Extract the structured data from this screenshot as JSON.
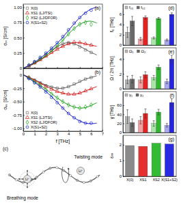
{
  "chart_data": [
    {
      "type": "scatter",
      "title": "(a)",
      "y_label": "σᵣₑ [S/cm]",
      "xlim": [
        0,
        7
      ],
      "ylim": [
        0,
        1.05
      ],
      "xticks": [
        0,
        1,
        2,
        3,
        4,
        5,
        6,
        7
      ],
      "yticks": [
        0,
        0.25,
        {
          "value": 0.5,
          "label": "0.50"
        },
        0.75,
        {
          "value": 1,
          "label": "1.00"
        }
      ],
      "tick_labels": "y",
      "legend": "upper left",
      "series": [
        {
          "name": "X(0)",
          "color": "#7f7f7f",
          "marker": "square",
          "x": [
            0.5,
            1,
            1.5,
            2,
            2.5,
            3,
            3.5,
            4,
            4.5,
            5,
            5.5,
            6
          ],
          "values": [
            0.04,
            0.09,
            0.15,
            0.22,
            0.29,
            0.35,
            0.4,
            0.42,
            0.4,
            0.35,
            0.3,
            0.26
          ]
        },
        {
          "name": "XS1 (LJ/TSI)",
          "color": "#e3342f",
          "marker": "triangle",
          "x": [
            0.5,
            1,
            1.5,
            2,
            2.5,
            3,
            3.5,
            4,
            4.5,
            5,
            5.5,
            6
          ],
          "values": [
            0.04,
            0.09,
            0.14,
            0.2,
            0.26,
            0.31,
            0.36,
            0.4,
            0.43,
            0.42,
            0.4,
            0.38
          ]
        },
        {
          "name": "XS2 (LJ/DFOR)",
          "color": "#33b533",
          "marker": "diamond",
          "x": [
            0.5,
            1,
            1.5,
            2,
            2.5,
            3,
            3.5,
            4,
            4.5,
            5,
            5.5,
            6
          ],
          "values": [
            0.05,
            0.1,
            0.16,
            0.22,
            0.3,
            0.38,
            0.47,
            0.56,
            0.65,
            0.72,
            0.75,
            0.72
          ]
        },
        {
          "name": "X(S1+S2)",
          "color": "#2233dd",
          "marker": "circle",
          "x": [
            0.5,
            1,
            1.5,
            2,
            2.5,
            3,
            3.5,
            4,
            4.5,
            5,
            5.5,
            6
          ],
          "values": [
            0.05,
            0.11,
            0.18,
            0.25,
            0.33,
            0.42,
            0.52,
            0.63,
            0.74,
            0.83,
            0.9,
            0.95
          ]
        },
        {
          "type": "line",
          "color": "#555555",
          "line_style": "solid",
          "x": [
            0,
            1,
            2,
            3,
            3.5,
            4,
            4.5,
            5,
            5.5,
            6,
            6.5
          ],
          "values": [
            0,
            0.08,
            0.21,
            0.35,
            0.4,
            0.42,
            0.4,
            0.36,
            0.31,
            0.26,
            0.22
          ]
        },
        {
          "type": "line",
          "color": "#cc1111",
          "line_style": "solid",
          "x": [
            0,
            1,
            2,
            3,
            3.5,
            4,
            4.5,
            5,
            5.5,
            6,
            6.5
          ],
          "values": [
            0,
            0.08,
            0.19,
            0.31,
            0.36,
            0.4,
            0.42,
            0.42,
            0.4,
            0.38,
            0.36
          ]
        },
        {
          "type": "line",
          "color": "#119911",
          "line_style": "solid",
          "x": [
            0,
            1,
            2,
            3,
            3.5,
            4,
            4.5,
            5,
            5.5,
            6,
            6.5
          ],
          "values": [
            0,
            0.09,
            0.21,
            0.37,
            0.46,
            0.56,
            0.65,
            0.72,
            0.76,
            0.77,
            0.74
          ]
        },
        {
          "type": "line",
          "color": "#1111cc",
          "line_style": "solid",
          "x": [
            0,
            1,
            2,
            3,
            3.5,
            4,
            4.5,
            5,
            5.5,
            6,
            6.5
          ],
          "values": [
            0,
            0.1,
            0.24,
            0.41,
            0.51,
            0.62,
            0.73,
            0.83,
            0.91,
            0.97,
            1.0
          ]
        }
      ]
    },
    {
      "type": "scatter",
      "title": "(b)",
      "x_label": "f [THz]",
      "y_label": "σᵢₘ [S/cm]",
      "xlim": [
        0,
        7
      ],
      "ylim": [
        -1.05,
        0.12
      ],
      "xticks": [
        0,
        1,
        2,
        3,
        4,
        5,
        6,
        7
      ],
      "yticks": [
        0,
        -0.25,
        {
          "value": -0.5,
          "label": "-0.50"
        },
        -0.75,
        {
          "value": -1,
          "label": "-1.00"
        }
      ],
      "legend": "lower left",
      "series": [
        {
          "name": "X(0)",
          "color": "#7f7f7f",
          "marker": "square",
          "x": [
            0.5,
            1,
            1.5,
            2,
            2.5,
            3,
            3.5,
            4,
            4.5,
            5,
            5.5,
            6
          ],
          "values": [
            -0.05,
            -0.1,
            -0.15,
            -0.2,
            -0.23,
            -0.25,
            -0.25,
            -0.22,
            -0.17,
            -0.12,
            -0.08,
            -0.05
          ]
        },
        {
          "name": "XS1 (LJ/TSI)",
          "color": "#e3342f",
          "marker": "triangle",
          "x": [
            0.5,
            1,
            1.5,
            2,
            2.5,
            3,
            3.5,
            4,
            4.5,
            5,
            5.5,
            6
          ],
          "values": [
            -0.05,
            -0.11,
            -0.17,
            -0.22,
            -0.27,
            -0.31,
            -0.34,
            -0.36,
            -0.36,
            -0.34,
            -0.3,
            -0.26
          ]
        },
        {
          "name": "XS2 (LJ/DFOR)",
          "color": "#33b533",
          "marker": "diamond",
          "x": [
            0.5,
            1,
            1.5,
            2,
            2.5,
            3,
            3.5,
            4,
            4.5,
            5,
            5.5,
            6
          ],
          "values": [
            -0.06,
            -0.13,
            -0.2,
            -0.28,
            -0.36,
            -0.43,
            -0.5,
            -0.56,
            -0.6,
            -0.62,
            -0.6,
            -0.56
          ]
        },
        {
          "name": "X(S1+S2)",
          "color": "#2233dd",
          "marker": "circle",
          "x": [
            0.5,
            1,
            1.5,
            2,
            2.5,
            3,
            3.5,
            4,
            4.5,
            5,
            5.5,
            6
          ],
          "values": [
            -0.07,
            -0.15,
            -0.23,
            -0.32,
            -0.42,
            -0.52,
            -0.62,
            -0.72,
            -0.8,
            -0.87,
            -0.9,
            -0.9
          ]
        },
        {
          "type": "line",
          "color": "#555555",
          "line_style": "solid",
          "x": [
            0,
            1,
            2,
            3,
            3.5,
            4,
            4.5,
            5,
            5.5,
            6,
            6.5
          ],
          "values": [
            0,
            -0.09,
            -0.19,
            -0.25,
            -0.25,
            -0.22,
            -0.18,
            -0.13,
            -0.08,
            -0.05,
            -0.02
          ]
        },
        {
          "type": "line",
          "color": "#cc1111",
          "line_style": "solid",
          "x": [
            0,
            1,
            2,
            3,
            3.5,
            4,
            4.5,
            5,
            5.5,
            6,
            6.5
          ],
          "values": [
            0,
            -0.1,
            -0.21,
            -0.31,
            -0.34,
            -0.36,
            -0.36,
            -0.34,
            -0.3,
            -0.26,
            -0.22
          ]
        },
        {
          "type": "line",
          "color": "#119911",
          "line_style": "solid",
          "x": [
            0,
            1,
            2,
            3,
            3.5,
            4,
            4.5,
            5,
            5.5,
            6,
            6.5
          ],
          "values": [
            0,
            -0.12,
            -0.27,
            -0.43,
            -0.5,
            -0.56,
            -0.6,
            -0.62,
            -0.61,
            -0.57,
            -0.52
          ]
        },
        {
          "type": "line",
          "color": "#1111cc",
          "line_style": "solid",
          "x": [
            0,
            1,
            2,
            3,
            3.5,
            4,
            4.5,
            5,
            5.5,
            6,
            6.5
          ],
          "values": [
            0,
            -0.14,
            -0.31,
            -0.51,
            -0.62,
            -0.72,
            -0.8,
            -0.86,
            -0.9,
            -0.91,
            -0.9
          ]
        }
      ]
    },
    {
      "type": "bar",
      "title": "(d)",
      "y_label": "f₀ [THz]",
      "ylim": [
        0,
        8
      ],
      "yticks": [
        0,
        2,
        4,
        6
      ],
      "tick_labels": "y",
      "legend": "upper left",
      "series": [
        {
          "name": "f₀₁",
          "color": "#b8b8b8",
          "colors": [
            "#b8b8b8",
            "#f4a0a0",
            "#a8e6a8",
            "#a8a8f0"
          ],
          "values": [
            2.5,
            1.2,
            1.4,
            1.0
          ],
          "errors": [
            1.0,
            0.3,
            0.2,
            0.2
          ]
        },
        {
          "name": "f₀₂",
          "color": "#6a6a6a",
          "colors": [
            "#6a6a6a",
            "#e02424",
            "#2fb82f",
            "#2424e0"
          ],
          "values": [
            4.7,
            5.4,
            5.2,
            6.0
          ],
          "errors": [
            0.9,
            0.3,
            0.2,
            0.3
          ]
        }
      ]
    },
    {
      "type": "bar",
      "title": "(e)",
      "y_label": "Ω / 2π [THz]",
      "ylim": [
        0,
        5.5
      ],
      "yticks": [
        0,
        2,
        4
      ],
      "tick_labels": "y",
      "legend": "upper left",
      "series": [
        {
          "name": "Ω₁",
          "color": "#b8b8b8",
          "colors": [
            "#b8b8b8",
            "#f4a0a0",
            "#a8e6a8",
            "#a8a8f0"
          ],
          "values": [
            1.2,
            1.2,
            1.5,
            1.0
          ],
          "errors": [
            0.5,
            0.4,
            0.3,
            0.3
          ]
        },
        {
          "name": "Ω₂",
          "color": "#6a6a6a",
          "colors": [
            "#6a6a6a",
            "#e02424",
            "#2fb82f",
            "#2424e0"
          ],
          "values": [
            1.3,
            1.9,
            2.9,
            4.0
          ],
          "errors": [
            0.5,
            0.4,
            0.3,
            0.5
          ]
        }
      ]
    },
    {
      "type": "bar",
      "title": "(f)",
      "y_label": "γ [THz]",
      "ylim": [
        0,
        90
      ],
      "yticks": [
        0,
        20,
        40,
        60
      ],
      "tick_labels": "y",
      "legend": "upper left",
      "series": [
        {
          "name": "γ₁",
          "color": "#b8b8b8",
          "colors": [
            "#b8b8b8",
            "#f4a0a0",
            "#a8e6a8",
            "#a8a8f0"
          ],
          "values": [
            35,
            27,
            20,
            16
          ],
          "errors": [
            15,
            8,
            6,
            4
          ]
        },
        {
          "name": "γ₂",
          "color": "#6a6a6a",
          "colors": [
            "#6a6a6a",
            "#e02424",
            "#2fb82f",
            "#2424e0"
          ],
          "values": [
            22,
            42,
            45,
            66
          ],
          "errors": [
            8,
            10,
            6,
            8
          ]
        }
      ]
    },
    {
      "type": "bar",
      "title": "(g)",
      "y_label": "ε∞",
      "ylim": [
        0,
        2.6
      ],
      "yticks": [
        0,
        1,
        2
      ],
      "categories": [
        "X(0)",
        "XS1",
        "XS2",
        "X(S1+S2)"
      ],
      "series": [
        {
          "colors": [
            "#8a8a8a",
            "#e53030",
            "#33bb33",
            "#2a2ae0"
          ],
          "values": [
            1.95,
            1.9,
            2.1,
            2.05
          ]
        }
      ]
    }
  ],
  "diagram": {
    "label": "(c)",
    "ion": "Li⁺",
    "modes": [
      "Breathing mode",
      "Twisting mode"
    ]
  }
}
